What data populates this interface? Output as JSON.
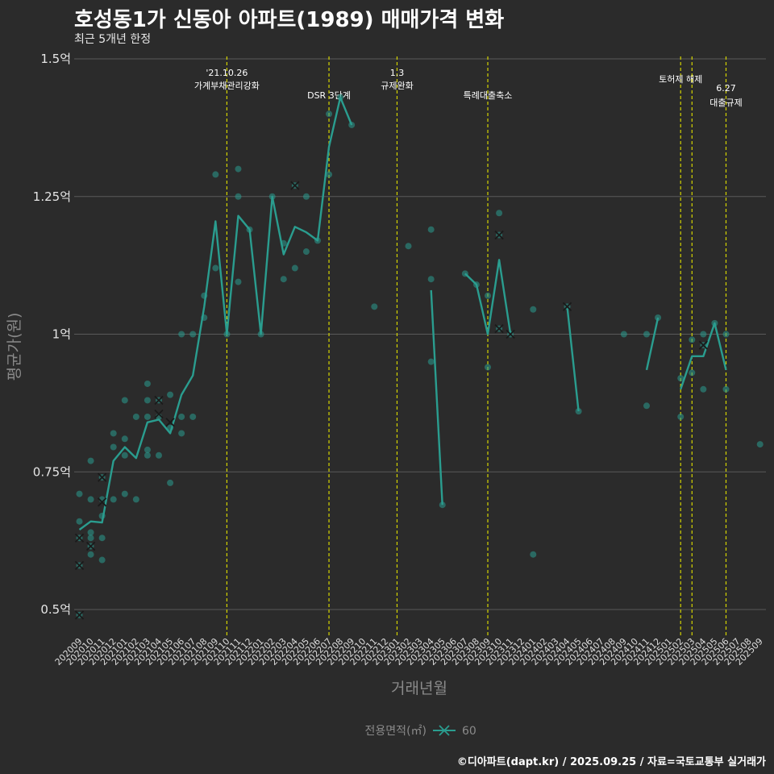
{
  "title": "호성동1가 신동아 아파트(1989) 매매가격 변화",
  "subtitle": "최근 5개년 한정",
  "caption": "©디아파트(dapt.kr) / 2025.09.25 / 자료=국토교통부 실거래가",
  "chart_data": {
    "type": "line",
    "xlabel": "거래년월",
    "ylabel": "평균가(원)",
    "ylim": [
      0.45,
      1.5
    ],
    "y_ticks": [
      0.5,
      0.75,
      1.0,
      1.25,
      1.5
    ],
    "y_tick_labels": [
      "0.5억",
      "0.75억",
      "1억",
      "1.25억",
      "1.5억"
    ],
    "grid": true,
    "x_categories": [
      "202009",
      "202010",
      "202011",
      "202012",
      "202101",
      "202102",
      "202103",
      "202104",
      "202105",
      "202106",
      "202107",
      "202108",
      "202109",
      "202110",
      "202111",
      "202112",
      "202201",
      "202202",
      "202203",
      "202204",
      "202205",
      "202206",
      "202207",
      "202208",
      "202209",
      "202210",
      "202211",
      "202212",
      "202301",
      "202302",
      "202303",
      "202304",
      "202305",
      "202306",
      "202307",
      "202308",
      "202309",
      "202310",
      "202311",
      "202312",
      "202401",
      "202402",
      "202403",
      "202404",
      "202405",
      "202406",
      "202407",
      "202408",
      "202409",
      "202410",
      "202411",
      "202412",
      "202501",
      "202502",
      "202503",
      "202504",
      "202505",
      "202506",
      "202507",
      "202508",
      "202509"
    ],
    "legend": {
      "title": "전용면적(㎡)",
      "entries": [
        "60"
      ],
      "position": "bottom"
    },
    "series_color": "#2a9d8f",
    "events": [
      {
        "x": "202110",
        "label": "'21.10.26\n가계부채관리강화"
      },
      {
        "x": "202207",
        "label": "DSR 3단계"
      },
      {
        "x": "202301",
        "label": "1.3\n규제완화"
      },
      {
        "x": "202309",
        "label": "특례대출축소"
      },
      {
        "x": "202502",
        "label": "토허제 해제"
      },
      {
        "x": "202503",
        "label": ""
      },
      {
        "x": "202506",
        "label": "6.27\n대출규제"
      }
    ],
    "line_segments": [
      [
        [
          "202009",
          0.645
        ],
        [
          "202010",
          0.66
        ],
        [
          "202011",
          0.658
        ],
        [
          "202012",
          0.77
        ],
        [
          "202101",
          0.795
        ],
        [
          "202102",
          0.775
        ],
        [
          "202103",
          0.84
        ],
        [
          "202104",
          0.845
        ],
        [
          "202105",
          0.82
        ],
        [
          "202106",
          0.89
        ],
        [
          "202107",
          0.925
        ],
        [
          "202108",
          1.05
        ],
        [
          "202109",
          1.205
        ],
        [
          "202110",
          1.0
        ],
        [
          "202111",
          1.215
        ],
        [
          "202112",
          1.19
        ],
        [
          "202201",
          1.0
        ],
        [
          "202202",
          1.25
        ],
        [
          "202203",
          1.145
        ],
        [
          "202204",
          1.195
        ],
        [
          "202205",
          1.185
        ],
        [
          "202206",
          1.17
        ],
        [
          "202207",
          1.34
        ],
        [
          "202208",
          1.43
        ],
        [
          "202209",
          1.38
        ]
      ],
      [
        [
          "202304",
          1.08
        ],
        [
          "202305",
          0.69
        ]
      ],
      [
        [
          "202307",
          1.11
        ],
        [
          "202308",
          1.09
        ],
        [
          "202309",
          1.0
        ],
        [
          "202310",
          1.135
        ],
        [
          "202311",
          1.0
        ]
      ],
      [
        [
          "202404",
          1.05
        ],
        [
          "202405",
          0.86
        ]
      ],
      [
        [
          "202411",
          0.935
        ],
        [
          "202412",
          1.03
        ]
      ],
      [
        [
          "202502",
          0.9
        ],
        [
          "202503",
          0.96
        ],
        [
          "202504",
          0.96
        ],
        [
          "202505",
          1.02
        ],
        [
          "202506",
          0.935
        ]
      ]
    ],
    "points": [
      [
        "202009",
        0.49
      ],
      [
        "202009",
        0.58
      ],
      [
        "202009",
        0.63
      ],
      [
        "202009",
        0.66
      ],
      [
        "202009",
        0.71
      ],
      [
        "202010",
        0.6
      ],
      [
        "202010",
        0.615
      ],
      [
        "202010",
        0.63
      ],
      [
        "202010",
        0.64
      ],
      [
        "202010",
        0.7
      ],
      [
        "202010",
        0.77
      ],
      [
        "202011",
        0.59
      ],
      [
        "202011",
        0.63
      ],
      [
        "202011",
        0.67
      ],
      [
        "202011",
        0.7
      ],
      [
        "202011",
        0.74
      ],
      [
        "202012",
        0.7
      ],
      [
        "202012",
        0.795
      ],
      [
        "202012",
        0.82
      ],
      [
        "202101",
        0.71
      ],
      [
        "202101",
        0.78
      ],
      [
        "202101",
        0.81
      ],
      [
        "202101",
        0.88
      ],
      [
        "202102",
        0.7
      ],
      [
        "202102",
        0.85
      ],
      [
        "202103",
        0.78
      ],
      [
        "202103",
        0.79
      ],
      [
        "202103",
        0.85
      ],
      [
        "202103",
        0.88
      ],
      [
        "202103",
        0.91
      ],
      [
        "202104",
        0.78
      ],
      [
        "202104",
        0.85
      ],
      [
        "202104",
        0.88
      ],
      [
        "202105",
        0.73
      ],
      [
        "202105",
        0.83
      ],
      [
        "202105",
        0.89
      ],
      [
        "202106",
        0.82
      ],
      [
        "202106",
        0.85
      ],
      [
        "202106",
        1.0
      ],
      [
        "202107",
        0.85
      ],
      [
        "202107",
        1.0
      ],
      [
        "202108",
        1.03
      ],
      [
        "202108",
        1.07
      ],
      [
        "202109",
        1.12
      ],
      [
        "202109",
        1.29
      ],
      [
        "202110",
        1.0
      ],
      [
        "202111",
        1.095
      ],
      [
        "202111",
        1.25
      ],
      [
        "202111",
        1.3
      ],
      [
        "202112",
        1.19
      ],
      [
        "202201",
        1.0
      ],
      [
        "202202",
        1.25
      ],
      [
        "202203",
        1.1
      ],
      [
        "202203",
        1.165
      ],
      [
        "202204",
        1.12
      ],
      [
        "202204",
        1.27
      ],
      [
        "202205",
        1.15
      ],
      [
        "202205",
        1.25
      ],
      [
        "202206",
        1.17
      ],
      [
        "202207",
        1.29
      ],
      [
        "202207",
        1.4
      ],
      [
        "202208",
        1.43
      ],
      [
        "202209",
        1.38
      ],
      [
        "202211",
        1.05
      ],
      [
        "202302",
        1.16
      ],
      [
        "202304",
        0.95
      ],
      [
        "202304",
        1.1
      ],
      [
        "202304",
        1.19
      ],
      [
        "202305",
        0.69
      ],
      [
        "202307",
        1.11
      ],
      [
        "202308",
        1.09
      ],
      [
        "202309",
        0.94
      ],
      [
        "202309",
        1.07
      ],
      [
        "202310",
        1.01
      ],
      [
        "202310",
        1.18
      ],
      [
        "202310",
        1.22
      ],
      [
        "202311",
        1.0
      ],
      [
        "202401",
        0.6
      ],
      [
        "202401",
        1.045
      ],
      [
        "202404",
        1.05
      ],
      [
        "202405",
        0.86
      ],
      [
        "202409",
        1.0
      ],
      [
        "202411",
        0.87
      ],
      [
        "202411",
        1.0
      ],
      [
        "202412",
        1.03
      ],
      [
        "202502",
        0.85
      ],
      [
        "202502",
        0.92
      ],
      [
        "202503",
        0.93
      ],
      [
        "202503",
        0.99
      ],
      [
        "202504",
        0.9
      ],
      [
        "202504",
        0.98
      ],
      [
        "202504",
        1.0
      ],
      [
        "202505",
        1.02
      ],
      [
        "202506",
        0.9
      ],
      [
        "202506",
        1.0
      ],
      [
        "202509",
        0.8
      ]
    ],
    "x_markers": [
      [
        "202009",
        0.49
      ],
      [
        "202009",
        0.58
      ],
      [
        "202009",
        0.63
      ],
      [
        "202010",
        0.615
      ],
      [
        "202011",
        0.695
      ],
      [
        "202011",
        0.74
      ],
      [
        "202104",
        0.855
      ],
      [
        "202104",
        0.88
      ],
      [
        "202105",
        0.84
      ],
      [
        "202204",
        1.27
      ],
      [
        "202310",
        1.01
      ],
      [
        "202310",
        1.18
      ],
      [
        "202311",
        1.0
      ],
      [
        "202404",
        1.05
      ],
      [
        "202504",
        0.98
      ]
    ]
  }
}
